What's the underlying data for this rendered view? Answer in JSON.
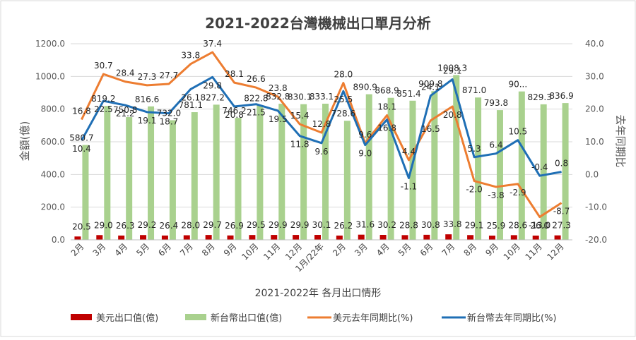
{
  "chart_data": {
    "type": "bar",
    "title": "2021-2022台灣機械出口單月分析",
    "xlabel": "2021-2022年 各月出口情形",
    "ylabel": "金額(億)",
    "y2label": "去年同期比",
    "ylim": [
      0,
      1200
    ],
    "yticks": [
      "0.0",
      "200.0",
      "400.0",
      "600.0",
      "800.0",
      "1000.0",
      "1200.0"
    ],
    "y2lim": [
      -20,
      40
    ],
    "y2ticks": [
      "-20.0",
      "-10.0",
      "0.0",
      "10.0",
      "20.0",
      "30.0",
      "40.0"
    ],
    "grid": true,
    "legend_position": "bottom",
    "categories": [
      "2月",
      "3月",
      "4月",
      "5月",
      "6月",
      "7月",
      "8月",
      "9月",
      "10月",
      "11月",
      "12月",
      "1月/22年",
      "2月",
      "3月",
      "4月",
      "5月",
      "6月",
      "7月",
      "8月",
      "9月",
      "10月",
      "11月",
      "12月"
    ],
    "series": [
      {
        "name": "美元出口值(億)",
        "type": "bar",
        "axis": "left",
        "color": "#c00000",
        "values": [
          20.5,
          29.0,
          26.3,
          29.2,
          26.4,
          28.0,
          29.7,
          26.9,
          29.5,
          29.9,
          29.9,
          30.1,
          26.2,
          31.6,
          30.2,
          28.8,
          30.8,
          33.8,
          29.1,
          25.9,
          28.6,
          26.0,
          27.3
        ],
        "labels": [
          "20.5",
          "29.0",
          "26.3",
          "29.2",
          "26.4",
          "28.0",
          "29.7",
          "26.9",
          "29.5",
          "29.9",
          "29.9",
          "30.1",
          "26.2",
          "31.6",
          "30.2",
          "28.8",
          "30.8",
          "33.8",
          "29.1",
          "25.9",
          "28.6",
          "26.0",
          "27.3"
        ]
      },
      {
        "name": "新台幣出口值(億)",
        "type": "bar",
        "axis": "left",
        "color": "#a9d18e",
        "values": [
          580.7,
          819.2,
          750.8,
          816.6,
          732.0,
          781.1,
          827.2,
          746.2,
          822.8,
          832.8,
          830.1,
          833.1,
          728.6,
          890.9,
          868.9,
          851.4,
          909.8,
          1008.3,
          871.0,
          793.8,
          908.0,
          829.3,
          836.9
        ],
        "labels": [
          "580.7",
          "819.2",
          "750.8",
          "816.6",
          "732.0",
          "781.1",
          "827.2",
          "746.2",
          "822.8",
          "832.8",
          "830.1",
          "833.1",
          "728.6",
          "890.9",
          "868.9",
          "851.4",
          "909.8",
          "1008.3",
          "871.0",
          "793.8",
          "90...",
          "829.3",
          "836.9"
        ]
      },
      {
        "name": "美元去年同期比(%)",
        "type": "line",
        "axis": "right",
        "color": "#ed7d31",
        "values": [
          16.8,
          30.7,
          28.4,
          27.3,
          27.7,
          33.8,
          37.4,
          28.1,
          26.6,
          23.8,
          15.4,
          12.8,
          28.0,
          9.6,
          18.1,
          4.4,
          16.5,
          20.8,
          -2.0,
          -3.8,
          -2.9,
          -13.0,
          -8.7
        ],
        "labels": [
          "16.8",
          "30.7",
          "28.4",
          "27.3",
          "27.7",
          "33.8",
          "37.4",
          "28.1",
          "26.6",
          "23.8",
          "15.4",
          "12.8",
          "28.0",
          "9.6",
          "18.1",
          "4.4",
          "16.5",
          "20.8",
          "-2.0",
          "-3.8",
          "-2.9",
          "-13.0",
          "-8.7"
        ]
      },
      {
        "name": "新台幣去年同期比(%)",
        "type": "line",
        "axis": "right",
        "color": "#1f6fb5",
        "values": [
          10.4,
          22.5,
          21.2,
          19.1,
          18.7,
          26.1,
          29.8,
          20.8,
          21.5,
          19.5,
          11.8,
          9.6,
          25.5,
          9.0,
          16.8,
          -1.1,
          24.1,
          29.1,
          5.3,
          6.4,
          10.5,
          -0.4,
          0.8
        ],
        "labels": [
          "10.4",
          "22.5",
          "21.2",
          "19.1",
          "18.7",
          "26.1",
          "29.8",
          "20.8",
          "21.5",
          "19.5",
          "11.8",
          "9.6",
          "25.5",
          "9.0",
          "16.8",
          "-1.1",
          "24.1",
          "29.1",
          "5.3",
          "6.4",
          "10.5",
          "-0.4",
          "0.8"
        ]
      }
    ]
  }
}
